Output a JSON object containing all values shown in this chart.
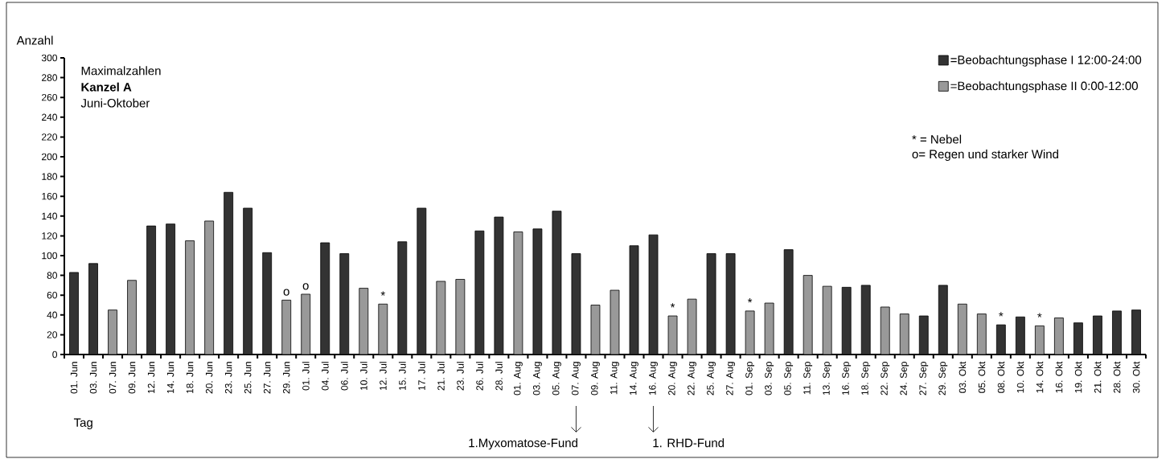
{
  "chart_data": {
    "type": "bar",
    "title": "Maximalzahlen",
    "subtitle": "Kanzel A",
    "xlabel": "Tag",
    "ylabel": "Anzahl",
    "categories": [
      "01. Jun",
      "03. Jun",
      "07. Jun",
      "09. Jun",
      "12. Jun",
      "14. Jun",
      "18. Jun",
      "20. Jun",
      "23. Jun",
      "25. Jun",
      "27. Jun",
      "29. Jun",
      "01. Jul",
      "04. Jul",
      "06. Jul",
      "10. Jul",
      "12. Jul",
      "15. Jul",
      "17. Jul",
      "21. Jul",
      "23. Jul",
      "26. Jul",
      "28. Jul",
      "01. Aug",
      "03. Aug",
      "05. Aug",
      "07. Aug",
      "09. Aug",
      "11. Aug",
      "14. Aug",
      "16. Aug",
      "20. Aug",
      "22. Aug",
      "25. Aug",
      "27. Aug",
      "01. Sep",
      "03. Sep",
      "05. Sep",
      "11. Sep",
      "13. Sep",
      "16. Sep",
      "18. Sep",
      "22. Sep",
      "24. Sep",
      "27. Sep",
      "29. Sep",
      "03. Okt",
      "05. Okt",
      "08. Okt",
      "10. Okt",
      "14. Okt",
      "16. Okt",
      "19. Okt",
      "21. Okt",
      "28. Okt",
      "30. Okt"
    ],
    "series": [
      {
        "name": "=Beobachtungsphase I 12:00-24:00",
        "color": "#333333",
        "values": [
          83,
          92,
          null,
          null,
          130,
          132,
          null,
          null,
          164,
          148,
          103,
          null,
          null,
          113,
          102,
          null,
          null,
          114,
          148,
          null,
          null,
          125,
          139,
          null,
          127,
          145,
          102,
          null,
          null,
          110,
          121,
          null,
          null,
          102,
          102,
          null,
          null,
          106,
          null,
          null,
          68,
          70,
          null,
          null,
          39,
          70,
          null,
          null,
          30,
          38,
          null,
          null,
          32,
          39,
          44,
          45
        ]
      },
      {
        "name": "=Beobachtungsphase II 0:00-12:00",
        "color": "#999999",
        "values": [
          null,
          null,
          45,
          75,
          null,
          null,
          115,
          135,
          null,
          null,
          null,
          55,
          61,
          null,
          null,
          67,
          51,
          null,
          null,
          74,
          76,
          null,
          null,
          124,
          null,
          null,
          null,
          50,
          65,
          null,
          null,
          39,
          56,
          null,
          null,
          44,
          52,
          null,
          80,
          69,
          null,
          null,
          48,
          41,
          null,
          null,
          51,
          41,
          null,
          null,
          29,
          37,
          null,
          null,
          null,
          null
        ]
      }
    ],
    "ylim": [
      0,
      300
    ],
    "yticks": [
      0,
      20,
      40,
      60,
      80,
      100,
      120,
      140,
      160,
      180,
      200,
      220,
      240,
      260,
      280,
      300
    ],
    "grid": false,
    "legend": "top right",
    "annotations": [
      "Juni-Oktober",
      "* = Nebel",
      "o= Regen und starker Wind",
      {
        "text": "o",
        "x": "29. Jun",
        "y": 55
      },
      {
        "text": "o",
        "x": "01. Jul",
        "y": 61
      },
      {
        "text": "*",
        "x": "12. Jul",
        "y": 51
      },
      {
        "text": "*",
        "x": "20. Aug",
        "y": 39
      },
      {
        "text": "*",
        "x": "01. Sep",
        "y": 44
      },
      {
        "text": "*",
        "x": "08. Okt",
        "y": 30
      },
      {
        "text": "*",
        "x": "14. Okt",
        "y": 29
      },
      "1.Myxomatose-Fund",
      "1. RHD-Fund"
    ]
  }
}
